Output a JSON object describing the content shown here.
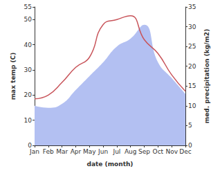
{
  "chart_data": {
    "type": "line",
    "x_label": "date (month)",
    "y_label": "max temp (C)",
    "y2_label": "med. precipitation (kg/m2)",
    "categories": [
      "Jan",
      "Feb",
      "Mar",
      "Apr",
      "May",
      "Jun",
      "Jul",
      "Aug",
      "Sep",
      "Oct",
      "Nov",
      "Dec"
    ],
    "series": [
      {
        "name": "med. precipitation",
        "type": "area",
        "axis": "y2",
        "color": "#b3c0f2",
        "values": [
          10,
          9.5,
          10.5,
          14,
          17.5,
          21,
          25,
          27,
          30.5,
          21,
          17,
          13
        ]
      },
      {
        "name": "max temp",
        "type": "line",
        "axis": "y",
        "color": "#c8545a",
        "values": [
          18.5,
          20,
          25,
          31,
          35,
          48,
          50,
          51.5,
          42,
          36.5,
          28,
          21.5
        ]
      }
    ],
    "ylim": [
      0,
      55
    ],
    "yticks": [
      0,
      10,
      20,
      30,
      40,
      50
    ],
    "y2lim": [
      0,
      35
    ],
    "y2ticks": [
      0,
      5,
      10,
      15,
      20,
      25,
      30,
      35
    ],
    "grid": false
  }
}
